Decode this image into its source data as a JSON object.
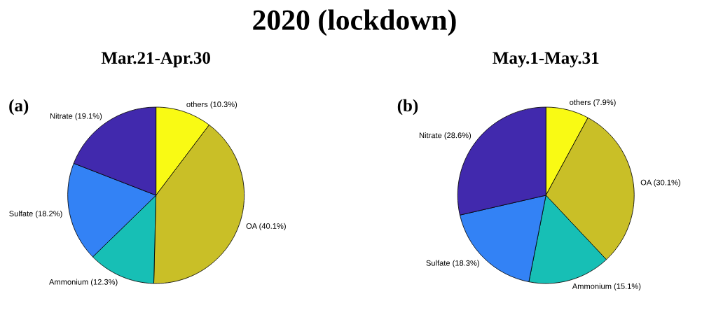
{
  "chart_data": [
    {
      "type": "pie",
      "title": "Mar.21-Apr.30",
      "annotations": [
        "2020 (lockdown)",
        "(a)"
      ],
      "categories": [
        "others (10.3%)",
        "OA (40.1%)",
        "Ammonium (12.3%)",
        "Sulfate (18.2%)",
        "Nitrate (19.1%)"
      ],
      "values": [
        10.3,
        40.1,
        12.3,
        18.2,
        19.1
      ],
      "colors": [
        "#f9fa14",
        "#c9bf27",
        "#17bfb5",
        "#3382f5",
        "#4129ad"
      ]
    },
    {
      "type": "pie",
      "title": "May.1-May.31",
      "annotations": [
        "(b)"
      ],
      "categories": [
        "others (7.9%)",
        "OA (30.1%)",
        "Ammonium (15.1%)",
        "Sulfate (18.3%)",
        "Nitrate (28.6%)"
      ],
      "values": [
        7.9,
        30.1,
        15.1,
        18.3,
        28.6
      ],
      "colors": [
        "#f9fa14",
        "#c9bf27",
        "#17bfb5",
        "#3382f5",
        "#4129ad"
      ]
    }
  ]
}
